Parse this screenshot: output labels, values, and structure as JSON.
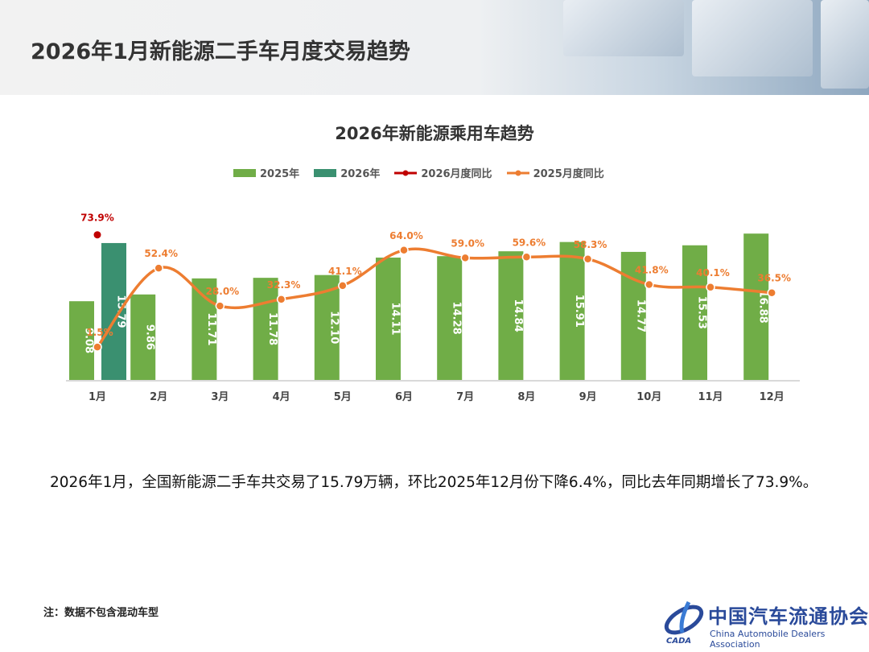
{
  "page_title": "2026年1月新能源二手车月度交易趋势",
  "description": "2026年1月，全国新能源二手车共交易了15.79万辆，环比2025年12月份下降6.4%，同比去年同期增长了73.9%。",
  "note": "注：数据不包含混动车型",
  "logo": {
    "cn": "中国汽车流通协会",
    "en": "China Automobile Dealers Association",
    "mark": "CADA"
  },
  "chart_data": {
    "type": "bar+line",
    "title": "2026年新能源乘用车趋势",
    "categories": [
      "1月",
      "2月",
      "3月",
      "4月",
      "5月",
      "6月",
      "7月",
      "8月",
      "9月",
      "10月",
      "11月",
      "12月"
    ],
    "series": [
      {
        "name": "2025年",
        "type": "bar",
        "color": "#70ad47",
        "values": [
          9.08,
          9.86,
          11.71,
          11.78,
          12.1,
          14.11,
          14.28,
          14.84,
          15.91,
          14.77,
          15.53,
          16.88
        ]
      },
      {
        "name": "2026年",
        "type": "bar",
        "color": "#3a9070",
        "values": [
          15.79,
          null,
          null,
          null,
          null,
          null,
          null,
          null,
          null,
          null,
          null,
          null
        ]
      },
      {
        "name": "2026月度同比",
        "type": "line",
        "color": "#c00000",
        "values": [
          73.9,
          null,
          null,
          null,
          null,
          null,
          null,
          null,
          null,
          null,
          null,
          null
        ]
      },
      {
        "name": "2025月度同比",
        "type": "line",
        "color": "#ed7d31",
        "values": [
          1.5,
          52.4,
          28.0,
          32.3,
          41.1,
          64.0,
          59.0,
          59.6,
          58.3,
          41.8,
          40.1,
          36.5
        ]
      }
    ],
    "legend_position": "top",
    "grid": false
  }
}
